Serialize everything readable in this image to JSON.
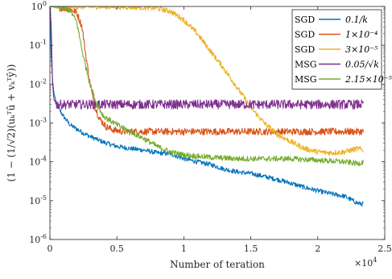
{
  "chart_data": {
    "type": "line",
    "title": "",
    "xlabel": "Number of teration",
    "x_multiplier": "×10",
    "x_multiplier_exp": "4",
    "ylabel": "(1 − (1/√2)(uₖᵀû + vₖᵀŷ))",
    "yscale": "log",
    "xlim": [
      0,
      25000
    ],
    "ylim": [
      1e-06,
      1
    ],
    "x_ticks": [
      0,
      5000,
      10000,
      15000,
      20000,
      25000
    ],
    "x_tick_labels": [
      "0",
      "0.5",
      "1",
      "1.5",
      "2",
      "2.5"
    ],
    "y_ticks": [
      1e-06,
      1e-05,
      0.0001,
      0.001,
      0.01,
      0.1,
      1
    ],
    "y_tick_labels": [
      {
        "base": "10",
        "exp": "-6"
      },
      {
        "base": "10",
        "exp": "-5"
      },
      {
        "base": "10",
        "exp": "-4"
      },
      {
        "base": "10",
        "exp": "-3"
      },
      {
        "base": "10",
        "exp": "-2"
      },
      {
        "base": "10",
        "exp": "-1"
      },
      {
        "base": "10",
        "exp": "0"
      }
    ],
    "legend_position": "top-right",
    "series": [
      {
        "method": "SGD",
        "step": "0.1/k",
        "color": "#0072BD",
        "points": [
          [
            0,
            1
          ],
          [
            100,
            0.05
          ],
          [
            200,
            0.012
          ],
          [
            300,
            0.006
          ],
          [
            500,
            0.003
          ],
          [
            1000,
            0.0015
          ],
          [
            1500,
            0.0009
          ],
          [
            2000,
            0.0007
          ],
          [
            2500,
            0.00055
          ],
          [
            3000,
            0.00045
          ],
          [
            4000,
            0.00032
          ],
          [
            5000,
            0.00025
          ],
          [
            6000,
            0.00022
          ],
          [
            7000,
            0.0002
          ],
          [
            8000,
            0.00017
          ],
          [
            9000,
            0.00016
          ],
          [
            10000,
            0.00012
          ],
          [
            11000,
            0.0001
          ],
          [
            12000,
            8.5e-05
          ],
          [
            13000,
            6.5e-05
          ],
          [
            14000,
            5.5e-05
          ],
          [
            15000,
            5e-05
          ],
          [
            16000,
            4.2e-05
          ],
          [
            17000,
            3.5e-05
          ],
          [
            18000,
            2.8e-05
          ],
          [
            19000,
            2.2e-05
          ],
          [
            20000,
            1.8e-05
          ],
          [
            21000,
            1.5e-05
          ],
          [
            22000,
            1.3e-05
          ],
          [
            23000,
            8.5e-06
          ],
          [
            23400,
            8.2e-06
          ]
        ]
      },
      {
        "method": "SGD",
        "step": "1×10⁻⁴",
        "color": "#D95319",
        "points": [
          [
            0,
            1
          ],
          [
            500,
            0.95
          ],
          [
            1000,
            0.9
          ],
          [
            1500,
            0.85
          ],
          [
            2000,
            0.7
          ],
          [
            2400,
            0.3
          ],
          [
            2700,
            0.05
          ],
          [
            3000,
            0.01
          ],
          [
            3300,
            0.003
          ],
          [
            3700,
            0.0013
          ],
          [
            4200,
            0.0008
          ],
          [
            4800,
            0.00065
          ],
          [
            5500,
            0.0006
          ],
          [
            23400,
            0.0006
          ]
        ]
      },
      {
        "method": "SGD",
        "step": "3×10⁻⁵",
        "color": "#EDB120",
        "points": [
          [
            0,
            1
          ],
          [
            5000,
            0.98
          ],
          [
            7000,
            0.95
          ],
          [
            8000,
            0.9
          ],
          [
            9000,
            0.75
          ],
          [
            10000,
            0.45
          ],
          [
            11000,
            0.2
          ],
          [
            12000,
            0.07
          ],
          [
            13000,
            0.025
          ],
          [
            14000,
            0.008
          ],
          [
            15000,
            0.0025
          ],
          [
            16000,
            0.001
          ],
          [
            17000,
            0.0005
          ],
          [
            18000,
            0.00033
          ],
          [
            19000,
            0.00022
          ],
          [
            20000,
            0.00018
          ],
          [
            21000,
            0.00017
          ],
          [
            22000,
            0.00018
          ],
          [
            23000,
            0.00022
          ],
          [
            23400,
            0.0002
          ]
        ]
      },
      {
        "method": "MSG",
        "step": "0.05/√k",
        "color": "#7E2F8E",
        "points": [
          [
            0,
            1
          ],
          [
            100,
            0.3
          ],
          [
            150,
            0.05
          ],
          [
            200,
            0.01
          ],
          [
            300,
            0.004
          ],
          [
            500,
            0.003
          ],
          [
            23400,
            0.003
          ]
        ]
      },
      {
        "method": "MSG",
        "step": "2.15×10⁻⁵",
        "color": "#77AC30",
        "points": [
          [
            0,
            1
          ],
          [
            800,
            0.95
          ],
          [
            1500,
            0.8
          ],
          [
            2000,
            0.4
          ],
          [
            2500,
            0.05
          ],
          [
            3000,
            0.01
          ],
          [
            3500,
            0.003
          ],
          [
            4000,
            0.0015
          ],
          [
            5000,
            0.0009
          ],
          [
            6000,
            0.0006
          ],
          [
            7000,
            0.0004
          ],
          [
            8000,
            0.00025
          ],
          [
            9000,
            0.00018
          ],
          [
            10000,
            0.00015
          ],
          [
            12000,
            0.00013
          ],
          [
            14000,
            0.00012
          ],
          [
            16000,
            0.00012
          ],
          [
            18000,
            0.00012
          ],
          [
            20000,
            0.00011
          ],
          [
            22000,
            0.0001
          ],
          [
            23000,
            9e-05
          ],
          [
            23400,
            0.0001
          ]
        ]
      }
    ]
  }
}
